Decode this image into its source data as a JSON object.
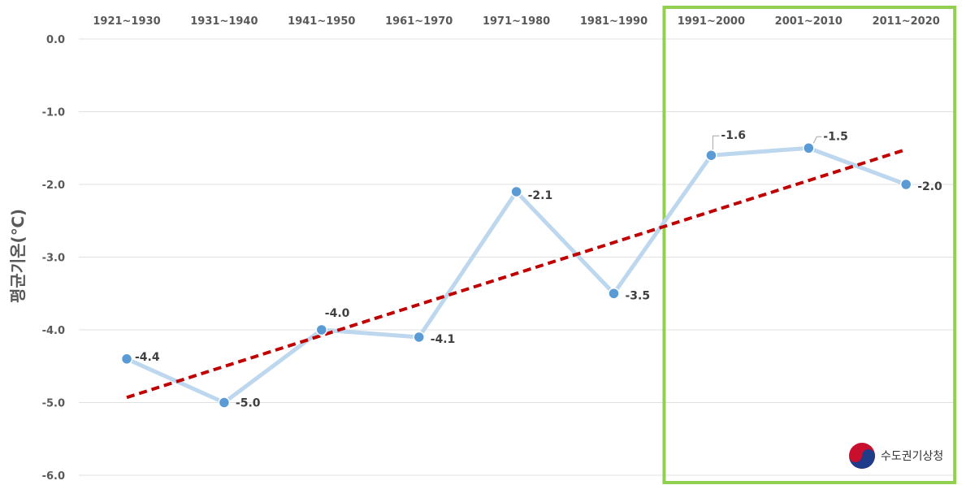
{
  "chart_data": {
    "type": "line",
    "categories": [
      "1921~1930",
      "1931~1940",
      "1941~1950",
      "1961~1970",
      "1971~1980",
      "1981~1990",
      "1991~2000",
      "2001~2010",
      "2011~2020"
    ],
    "series": [
      {
        "values": [
          -4.4,
          -5.0,
          -4.0,
          -4.1,
          -2.1,
          -3.5,
          -1.6,
          -1.5,
          -2.0
        ]
      }
    ],
    "value_labels": [
      "-4.4",
      "-5.0",
      "-4.0",
      "-4.1",
      "-2.1",
      "-3.5",
      "-1.6",
      "-1.5",
      "-2.0"
    ],
    "trendline": {
      "style": "dashed",
      "start": -4.93,
      "end": -1.52
    },
    "ylabel": "평균기온(℃)",
    "xlabel": "",
    "ylim": [
      -6.0,
      0.0
    ],
    "yticks": [
      "0.0",
      "-1.0",
      "-2.0",
      "-3.0",
      "-4.0",
      "-5.0",
      "-6.0"
    ],
    "x_axis_position": "top",
    "grid": true,
    "highlight": {
      "from_category": "1991~2000",
      "to_category": "2011~2020"
    },
    "colors": {
      "series": "#bdd7ee",
      "marker": "#5b9bd5",
      "trend": "#c00000",
      "highlight": "#92d050",
      "grid": "#e0e0e0"
    }
  },
  "logo": {
    "text": "수도권기상청"
  }
}
